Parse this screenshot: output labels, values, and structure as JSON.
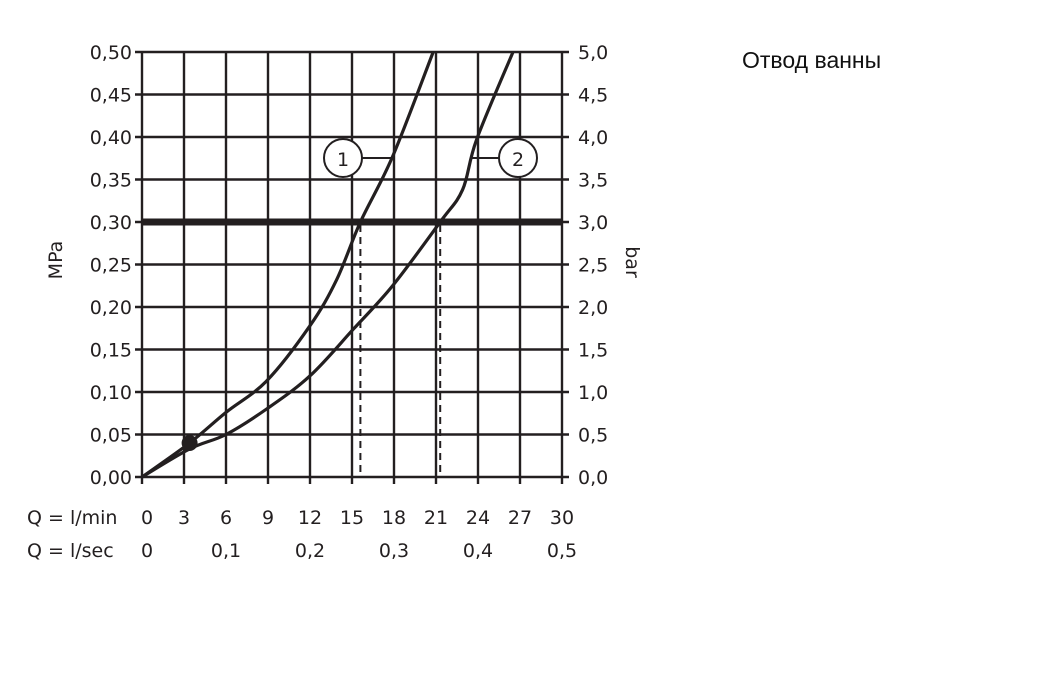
{
  "chart_data": {
    "type": "line",
    "title": "Отвод ванны",
    "xlabel": "Q = l/min",
    "x2label": "Q = l/sec",
    "ylabel": "MPa",
    "y2label": "bar",
    "xlim": [
      0,
      30
    ],
    "ylim": [
      0,
      0.5
    ],
    "grid": true,
    "x_ticks": [
      "0",
      "3",
      "6",
      "9",
      "12",
      "15",
      "18",
      "21",
      "24",
      "27",
      "30"
    ],
    "x2_ticks": [
      {
        "value": 0,
        "label": "0"
      },
      {
        "value": 0.1,
        "label": "0,1"
      },
      {
        "value": 0.2,
        "label": "0,2"
      },
      {
        "value": 0.3,
        "label": "0,3"
      },
      {
        "value": 0.4,
        "label": "0,4"
      },
      {
        "value": 0.5,
        "label": "0,5"
      }
    ],
    "y_ticks": [
      "0,00",
      "0,05",
      "0,10",
      "0,15",
      "0,20",
      "0,25",
      "0,30",
      "0,35",
      "0,40",
      "0,45",
      "0,50"
    ],
    "y2_ticks": [
      "0,0",
      "0,5",
      "1,0",
      "1,5",
      "2,0",
      "2,5",
      "3,0",
      "3,5",
      "4,0",
      "4,5",
      "5,0"
    ],
    "reference_line": {
      "y": 0.3
    },
    "series": [
      {
        "name": "1",
        "x": [
          0,
          3.4,
          6.0,
          8.9,
          12.0,
          13.9,
          15.6,
          17.9,
          20.8
        ],
        "y": [
          0,
          0.04,
          0.076,
          0.113,
          0.178,
          0.232,
          0.3,
          0.377,
          0.5
        ]
      },
      {
        "name": "2",
        "x": [
          0,
          3.4,
          6.0,
          8.9,
          12.0,
          15.1,
          17.9,
          21.3,
          22.9,
          23.9,
          26.5
        ],
        "y": [
          0,
          0.033,
          0.05,
          0.08,
          0.119,
          0.174,
          0.225,
          0.3,
          0.338,
          0.397,
          0.5
        ]
      }
    ],
    "dashed_markers_x": [
      15.6,
      21.3
    ],
    "point": {
      "x": 3.4,
      "y": 0.04
    },
    "colors": {
      "ink": "#231f20"
    }
  }
}
